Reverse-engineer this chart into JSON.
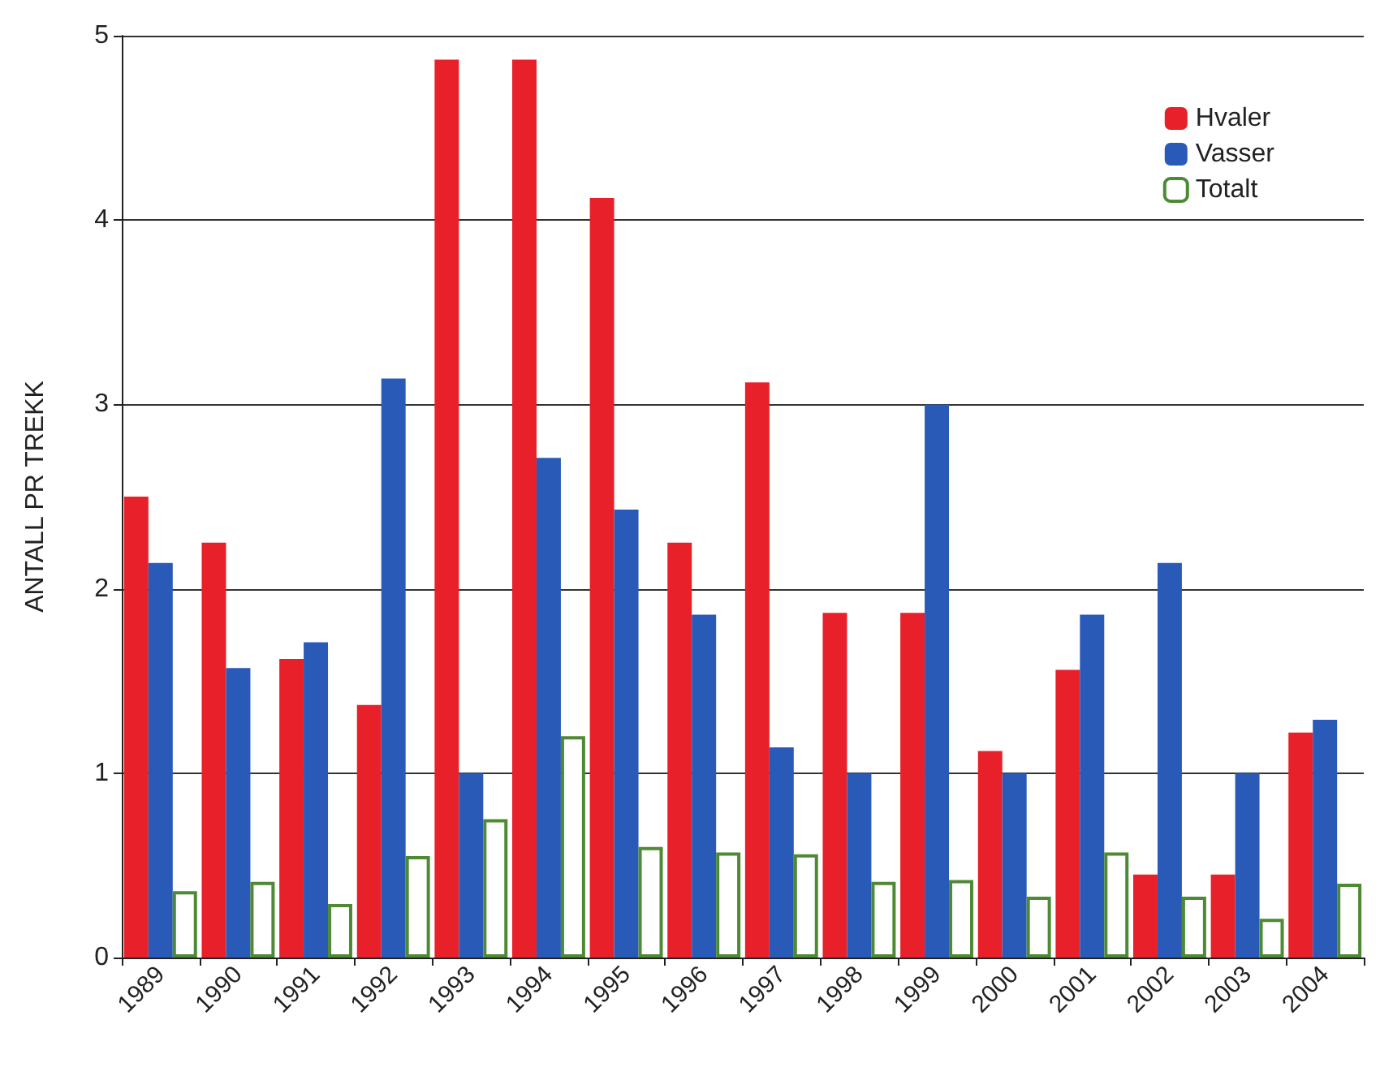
{
  "chart_data": {
    "type": "bar",
    "ylabel": "ANTALL PR TREKK",
    "categories": [
      "1989",
      "1990",
      "1991",
      "1992",
      "1993",
      "1994",
      "1995",
      "1996",
      "1997",
      "1998",
      "1999",
      "2000",
      "2001",
      "2002",
      "2003",
      "2004"
    ],
    "series": [
      {
        "name": "Hvaler",
        "color": "#e8202a",
        "values": [
          2.5,
          2.25,
          1.62,
          1.37,
          4.87,
          4.87,
          4.12,
          2.25,
          3.12,
          1.87,
          1.87,
          1.12,
          1.56,
          0.45,
          0.45,
          1.22
        ]
      },
      {
        "name": "Vasser",
        "color": "#2a5ab8",
        "values": [
          2.14,
          1.57,
          1.71,
          3.14,
          1.0,
          2.71,
          2.43,
          1.86,
          1.14,
          1.0,
          3.0,
          1.0,
          1.86,
          2.14,
          1.0,
          1.29
        ]
      },
      {
        "name": "Totalt",
        "color": "#4e8a34",
        "values": [
          0.36,
          0.41,
          0.29,
          0.55,
          0.75,
          1.2,
          0.6,
          0.57,
          0.56,
          0.41,
          0.42,
          0.33,
          0.57,
          0.33,
          0.21,
          0.4
        ]
      }
    ],
    "ylim": [
      0,
      5
    ],
    "yticks": [
      0,
      1,
      2,
      3,
      4,
      5
    ],
    "grid": "y",
    "legend": "top right"
  }
}
